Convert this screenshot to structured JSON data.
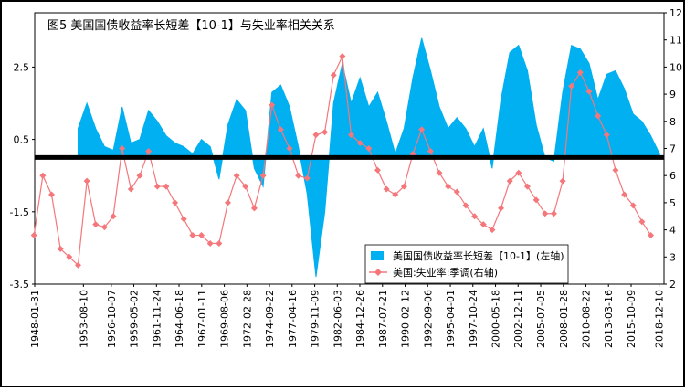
{
  "chart_data": {
    "type": "area-line",
    "title": "图5 美国国债收益率长短差【10-1】与失业率相关关系",
    "xlim": [
      1948.08,
      2019.5
    ],
    "xticks": [
      {
        "value": 1948.08,
        "label": "1948-01-31"
      },
      {
        "value": 1953.61,
        "label": "1953-08-10"
      },
      {
        "value": 1956.77,
        "label": "1956-10-07"
      },
      {
        "value": 1959.33,
        "label": "1959-05-02"
      },
      {
        "value": 1961.9,
        "label": "1961-11-24"
      },
      {
        "value": 1964.46,
        "label": "1964-06-18"
      },
      {
        "value": 1967.03,
        "label": "1967-01-11"
      },
      {
        "value": 1969.6,
        "label": "1969-08-06"
      },
      {
        "value": 1972.16,
        "label": "1972-02-28"
      },
      {
        "value": 1974.72,
        "label": "1974-09-22"
      },
      {
        "value": 1977.29,
        "label": "1977-04-16"
      },
      {
        "value": 1979.86,
        "label": "1979-11-09"
      },
      {
        "value": 1982.42,
        "label": "1982-06-03"
      },
      {
        "value": 1984.98,
        "label": "1984-12-26"
      },
      {
        "value": 1987.55,
        "label": "1987-07-21"
      },
      {
        "value": 1990.12,
        "label": "1990-02-12"
      },
      {
        "value": 1992.68,
        "label": "1992-09-06"
      },
      {
        "value": 1995.25,
        "label": "1995-04-01"
      },
      {
        "value": 1997.81,
        "label": "1997-10-24"
      },
      {
        "value": 2000.38,
        "label": "2000-05-18"
      },
      {
        "value": 2002.94,
        "label": "2002-12-11"
      },
      {
        "value": 2005.51,
        "label": "2005-07-05"
      },
      {
        "value": 2008.08,
        "label": "2008-01-28"
      },
      {
        "value": 2010.64,
        "label": "2010-08-22"
      },
      {
        "value": 2013.2,
        "label": "2013-03-16"
      },
      {
        "value": 2015.77,
        "label": "2015-10-09"
      },
      {
        "value": 2018.94,
        "label": "2018-12-10"
      }
    ],
    "ylim": [
      -3.5,
      4.0
    ],
    "yticks": [
      -3.5,
      -1.5,
      0.5,
      2.5
    ],
    "y2lim": [
      2,
      12
    ],
    "y2ticks": [
      2,
      3,
      4,
      5,
      6,
      7,
      8,
      9,
      10,
      11,
      12
    ],
    "series": [
      {
        "name": "美国国债收益率长短差【10-1】(左轴)",
        "color": "#00b0f0",
        "type": "area",
        "x": [
          1953,
          1954,
          1955,
          1956,
          1957,
          1958,
          1959,
          1960,
          1961,
          1962,
          1963,
          1964,
          1965,
          1966,
          1967,
          1968,
          1969,
          1970,
          1971,
          1972,
          1973,
          1974,
          1975,
          1976,
          1977,
          1978,
          1979,
          1980,
          1981,
          1982,
          1983,
          1984,
          1985,
          1986,
          1987,
          1988,
          1989,
          1990,
          1991,
          1992,
          1993,
          1994,
          1995,
          1996,
          1997,
          1998,
          1999,
          2000,
          2001,
          2002,
          2003,
          2004,
          2005,
          2006,
          2007,
          2008,
          2009,
          2010,
          2011,
          2012,
          2013,
          2014,
          2015,
          2016,
          2017,
          2018,
          2019
        ],
        "values": [
          0.8,
          1.5,
          0.8,
          0.3,
          0.2,
          1.4,
          0.4,
          0.5,
          1.3,
          1.0,
          0.6,
          0.4,
          0.3,
          0.1,
          0.5,
          0.3,
          -0.6,
          0.9,
          1.6,
          1.3,
          -0.3,
          -0.8,
          1.8,
          2.0,
          1.4,
          0.3,
          -1.0,
          -3.3,
          -1.5,
          1.5,
          2.6,
          1.5,
          2.2,
          1.4,
          1.8,
          1.0,
          0.1,
          0.8,
          2.2,
          3.3,
          2.4,
          1.4,
          0.8,
          1.1,
          0.8,
          0.3,
          0.8,
          -0.3,
          1.6,
          2.9,
          3.1,
          2.4,
          0.9,
          0.0,
          -0.1,
          1.8,
          3.1,
          3.0,
          2.6,
          1.6,
          2.3,
          2.4,
          1.9,
          1.2,
          1.0,
          0.6,
          0.1
        ]
      },
      {
        "name": "美国:失业率:季调(右轴)",
        "color": "#f4777b",
        "type": "line",
        "axis": "y2",
        "x": [
          1948,
          1949,
          1950,
          1951,
          1952,
          1953,
          1954,
          1955,
          1956,
          1957,
          1958,
          1959,
          1960,
          1961,
          1962,
          1963,
          1964,
          1965,
          1966,
          1967,
          1968,
          1969,
          1970,
          1971,
          1972,
          1973,
          1974,
          1975,
          1976,
          1977,
          1978,
          1979,
          1980,
          1981,
          1982,
          1983,
          1984,
          1985,
          1986,
          1987,
          1988,
          1989,
          1990,
          1991,
          1992,
          1993,
          1994,
          1995,
          1996,
          1997,
          1998,
          1999,
          2000,
          2001,
          2002,
          2003,
          2004,
          2005,
          2006,
          2007,
          2008,
          2009,
          2010,
          2011,
          2012,
          2013,
          2014,
          2015,
          2016,
          2017,
          2018
        ],
        "values": [
          3.8,
          6.0,
          5.3,
          3.3,
          3.0,
          2.7,
          5.8,
          4.2,
          4.1,
          4.5,
          7.0,
          5.5,
          6.0,
          6.9,
          5.6,
          5.6,
          5.0,
          4.4,
          3.8,
          3.8,
          3.5,
          3.5,
          5.0,
          6.0,
          5.6,
          4.8,
          6.0,
          8.6,
          7.7,
          7.0,
          6.0,
          5.9,
          7.5,
          7.6,
          9.7,
          10.4,
          7.5,
          7.2,
          7.0,
          6.2,
          5.5,
          5.3,
          5.6,
          6.8,
          7.7,
          6.9,
          6.1,
          5.6,
          5.4,
          4.9,
          4.5,
          4.2,
          4.0,
          4.8,
          5.8,
          6.1,
          5.6,
          5.1,
          4.6,
          4.6,
          5.8,
          9.3,
          9.8,
          9.1,
          8.2,
          7.5,
          6.2,
          5.3,
          4.9,
          4.3,
          3.8
        ]
      }
    ]
  }
}
